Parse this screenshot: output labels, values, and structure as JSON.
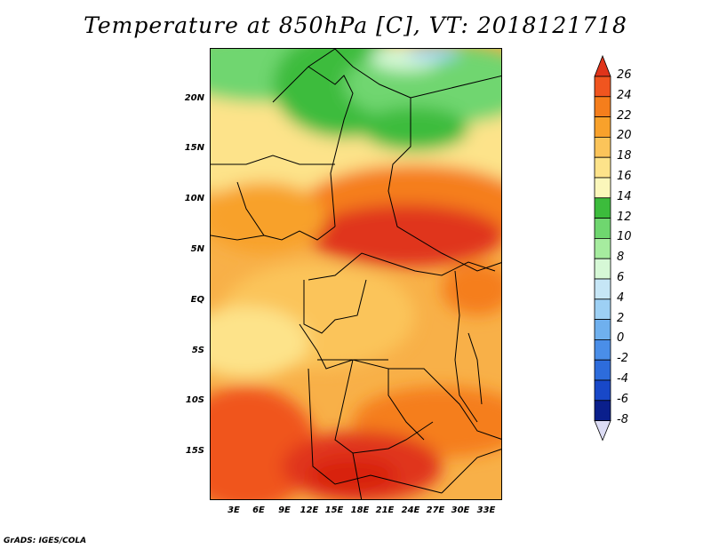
{
  "title": "Temperature at 850hPa [C], VT: 2018121718",
  "credit": "GrADS: IGES/COLA",
  "lat_labels": [
    "20N",
    "15N",
    "10N",
    "5N",
    "EQ",
    "5S",
    "10S",
    "15S"
  ],
  "lon_labels": [
    "3E",
    "6E",
    "9E",
    "12E",
    "15E",
    "18E",
    "21E",
    "24E",
    "27E",
    "30E",
    "33E"
  ],
  "colorbar": {
    "labels": [
      "26",
      "24",
      "22",
      "20",
      "18",
      "16",
      "14",
      "12",
      "10",
      "8",
      "6",
      "4",
      "2",
      "0",
      "-2",
      "-4",
      "-6",
      "-8"
    ],
    "colors": [
      "#e0341a",
      "#f0551f",
      "#f57e1c",
      "#f8a12b",
      "#fbc45a",
      "#fde38a",
      "#fbf7bb",
      "#3cbc3c",
      "#6fd66f",
      "#a6ec9f",
      "#d6f8d6",
      "#c6e6f6",
      "#9dd0f4",
      "#6fb0ee",
      "#4a8ee8",
      "#2d6cdc",
      "#1848c8",
      "#0a1f8c"
    ]
  }
}
